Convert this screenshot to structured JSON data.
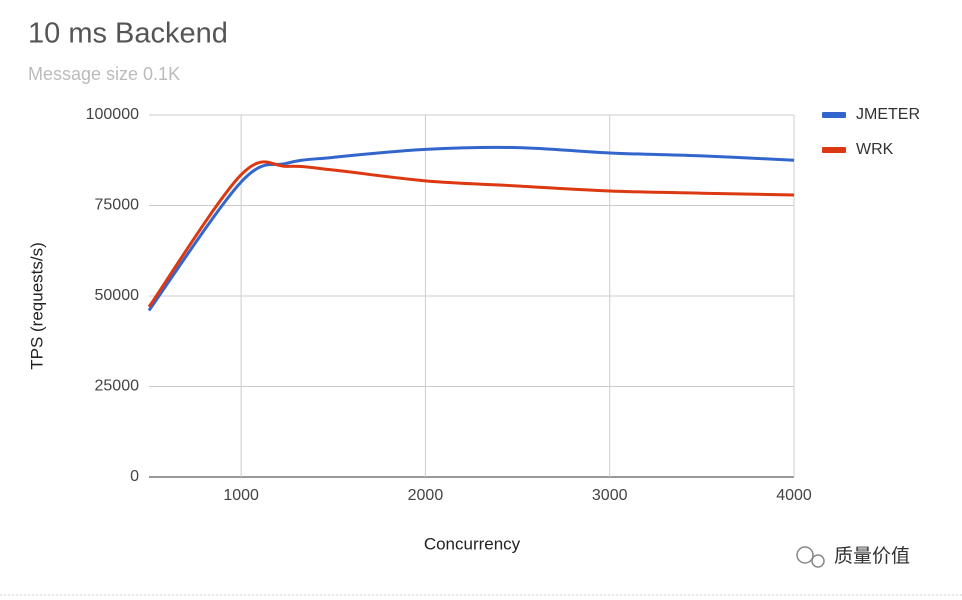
{
  "chart_data": {
    "type": "line",
    "title": "10 ms Backend",
    "subtitle": "Message size 0.1K",
    "x_label": "Concurrency",
    "y_label": "TPS (requests/s)",
    "x": [
      500,
      1000,
      1250,
      1500,
      2000,
      2500,
      3000,
      3500,
      4000
    ],
    "series": [
      {
        "name": "JMETER",
        "color": "#3366cc",
        "values": [
          46000,
          81500,
          86700,
          88300,
          90500,
          91000,
          89500,
          88700,
          87500
        ]
      },
      {
        "name": "WRK",
        "color": "#dc3912",
        "values": [
          47000,
          83500,
          85800,
          84800,
          81800,
          80400,
          79000,
          78400,
          77900
        ]
      }
    ],
    "xlim": [
      500,
      4000
    ],
    "xticks": [
      1000,
      2000,
      3000,
      4000
    ],
    "ylim": [
      0,
      100000
    ],
    "yticks": [
      0,
      25000,
      50000,
      75000,
      100000
    ],
    "grid": true,
    "legend": "right",
    "watermark": "质量价值"
  }
}
